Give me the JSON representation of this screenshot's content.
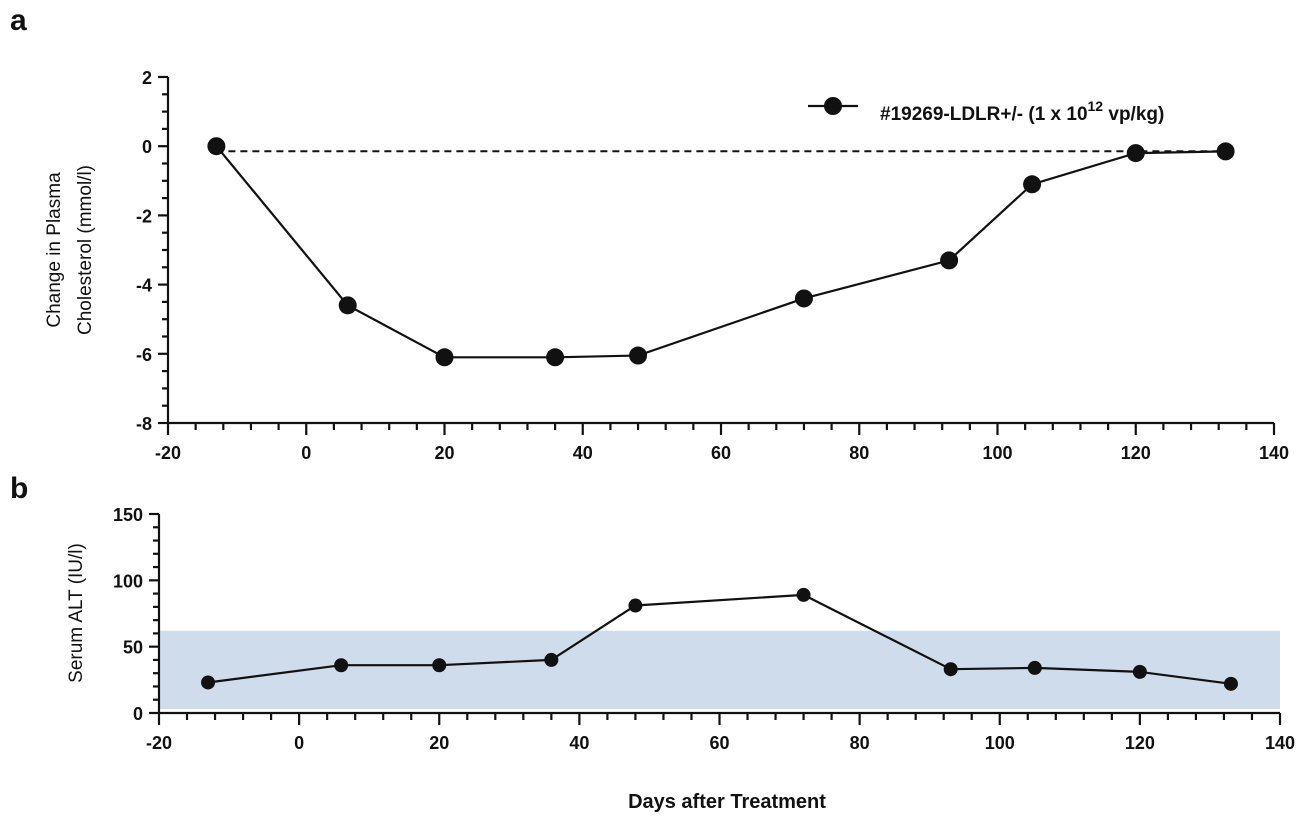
{
  "chart_data": [
    {
      "type": "line",
      "panel_label": "a",
      "title": "",
      "xlabel": "",
      "ylabel": [
        "Change in Plasma",
        "Cholesterol (mmol/l)"
      ],
      "xlim": [
        -20,
        140
      ],
      "ylim": [
        -8,
        2
      ],
      "x_ticks": [
        -20,
        0,
        20,
        40,
        60,
        80,
        100,
        120,
        140
      ],
      "y_ticks": [
        -8,
        -6,
        -4,
        -2,
        0,
        2
      ],
      "grid": false,
      "legend_position": "top-right",
      "reference_line": {
        "y": 0,
        "style": "dashed"
      },
      "series": [
        {
          "name": "#19269-LDLR+/- (1 x 10",
          "name_sup": "12",
          "name_suffix": " vp/kg)",
          "color": "#111111",
          "x": [
            -13,
            6,
            20,
            36,
            48,
            72,
            93,
            105,
            120,
            133
          ],
          "y": [
            0.0,
            -4.6,
            -6.1,
            -6.1,
            -6.05,
            -4.4,
            -3.3,
            -1.1,
            -0.2,
            -0.15
          ]
        }
      ]
    },
    {
      "type": "line",
      "panel_label": "b",
      "title": "",
      "xlabel": "Days after Treatment",
      "ylabel": [
        "Serum ALT (IU/l)"
      ],
      "xlim": [
        -20,
        140
      ],
      "ylim": [
        0,
        150
      ],
      "x_ticks": [
        -20,
        0,
        20,
        40,
        60,
        80,
        100,
        120,
        140
      ],
      "y_ticks": [
        0,
        50,
        100,
        150
      ],
      "grid": false,
      "normal_range_band": {
        "y": [
          3,
          62
        ],
        "color": "#cfdcec"
      },
      "series": [
        {
          "color": "#111111",
          "x": [
            -13,
            6,
            20,
            36,
            48,
            72,
            93,
            105,
            120,
            133
          ],
          "y": [
            23,
            36,
            36,
            40,
            81,
            89,
            33,
            34,
            31,
            22
          ]
        }
      ]
    }
  ]
}
